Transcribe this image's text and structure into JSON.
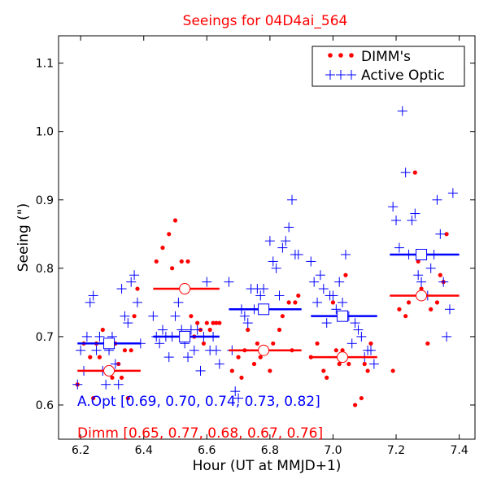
{
  "chart_data": {
    "type": "scatter",
    "title": "Seeings for 04D4ai_564",
    "xlabel": "Hour (UT at MMJD+1)",
    "ylabel": "Seeing (\")",
    "xlim": [
      6.13,
      7.45
    ],
    "ylim": [
      0.55,
      1.14
    ],
    "xticks": [
      6.2,
      6.4,
      6.6,
      6.8,
      7.0,
      7.2,
      7.4
    ],
    "xtick_labels": [
      "6.2",
      "6.4",
      "6.6",
      "6.8",
      "7.0",
      "7.2",
      "7.4"
    ],
    "yticks": [
      0.6,
      0.7,
      0.8,
      0.9,
      1.0,
      1.1
    ],
    "ytick_labels": [
      "0.6",
      "0.7",
      "0.8",
      "0.9",
      "1.0",
      "1.1"
    ],
    "legend": {
      "position": "top-right",
      "entries": [
        {
          "label": "DIMM's",
          "marker": "dots",
          "color": "#ff0000"
        },
        {
          "label": "Active Optic",
          "marker": "plus",
          "color": "#0000ff"
        }
      ]
    },
    "colors": {
      "dimm": "#ff0000",
      "aopt": "#0000ff"
    },
    "series": [
      {
        "name": "DIMM's",
        "marker": "dot",
        "color": "#ff0000",
        "points": [
          [
            6.19,
            0.63
          ],
          [
            6.21,
            0.69
          ],
          [
            6.23,
            0.67
          ],
          [
            6.24,
            0.61
          ],
          [
            6.25,
            0.69
          ],
          [
            6.26,
            0.67
          ],
          [
            6.27,
            0.71
          ],
          [
            6.28,
            0.69
          ],
          [
            6.29,
            0.65
          ],
          [
            6.3,
            0.64
          ],
          [
            6.31,
            0.69
          ],
          [
            6.32,
            0.66
          ],
          [
            6.33,
            0.64
          ],
          [
            6.34,
            0.68
          ],
          [
            6.35,
            0.61
          ],
          [
            6.36,
            0.68
          ],
          [
            6.37,
            0.73
          ],
          [
            6.38,
            0.77
          ],
          [
            6.44,
            0.81
          ],
          [
            6.46,
            0.83
          ],
          [
            6.48,
            0.85
          ],
          [
            6.49,
            0.8
          ],
          [
            6.5,
            0.87
          ],
          [
            6.52,
            0.81
          ],
          [
            6.54,
            0.81
          ],
          [
            6.55,
            0.73
          ],
          [
            6.56,
            0.7
          ],
          [
            6.57,
            0.72
          ],
          [
            6.58,
            0.71
          ],
          [
            6.59,
            0.69
          ],
          [
            6.6,
            0.72
          ],
          [
            6.61,
            0.71
          ],
          [
            6.62,
            0.72
          ],
          [
            6.63,
            0.72
          ],
          [
            6.64,
            0.72
          ],
          [
            6.68,
            0.65
          ],
          [
            6.7,
            0.67
          ],
          [
            6.71,
            0.64
          ],
          [
            6.72,
            0.68
          ],
          [
            6.73,
            0.71
          ],
          [
            6.75,
            0.66
          ],
          [
            6.76,
            0.69
          ],
          [
            6.77,
            0.67
          ],
          [
            6.78,
            0.68
          ],
          [
            6.8,
            0.65
          ],
          [
            6.81,
            0.69
          ],
          [
            6.83,
            0.71
          ],
          [
            6.84,
            0.73
          ],
          [
            6.86,
            0.75
          ],
          [
            6.87,
            0.68
          ],
          [
            6.88,
            0.75
          ],
          [
            6.89,
            0.76
          ],
          [
            6.93,
            0.67
          ],
          [
            6.95,
            0.69
          ],
          [
            6.97,
            0.65
          ],
          [
            6.98,
            0.64
          ],
          [
            7.0,
            0.75
          ],
          [
            7.01,
            0.68
          ],
          [
            7.02,
            0.66
          ],
          [
            7.03,
            0.68
          ],
          [
            7.04,
            0.79
          ],
          [
            7.05,
            0.66
          ],
          [
            7.07,
            0.6
          ],
          [
            7.09,
            0.61
          ],
          [
            7.1,
            0.66
          ],
          [
            7.11,
            0.65
          ],
          [
            7.12,
            0.69
          ],
          [
            7.19,
            0.65
          ],
          [
            7.21,
            0.74
          ],
          [
            7.23,
            0.73
          ],
          [
            7.24,
            0.75
          ],
          [
            7.26,
            0.94
          ],
          [
            7.27,
            0.81
          ],
          [
            7.28,
            0.77
          ],
          [
            7.29,
            0.76
          ],
          [
            7.3,
            0.69
          ],
          [
            7.31,
            0.74
          ],
          [
            7.33,
            0.75
          ],
          [
            7.34,
            0.79
          ],
          [
            7.35,
            0.78
          ],
          [
            7.36,
            0.85
          ]
        ]
      },
      {
        "name": "Active Optic",
        "marker": "plus",
        "color": "#0000ff",
        "points": [
          [
            6.19,
            0.63
          ],
          [
            6.2,
            0.68
          ],
          [
            6.21,
            0.65
          ],
          [
            6.22,
            0.7
          ],
          [
            6.23,
            0.75
          ],
          [
            6.24,
            0.76
          ],
          [
            6.25,
            0.68
          ],
          [
            6.26,
            0.7
          ],
          [
            6.27,
            0.65
          ],
          [
            6.28,
            0.63
          ],
          [
            6.29,
            0.68
          ],
          [
            6.3,
            0.7
          ],
          [
            6.31,
            0.66
          ],
          [
            6.32,
            0.63
          ],
          [
            6.33,
            0.77
          ],
          [
            6.34,
            0.73
          ],
          [
            6.35,
            0.72
          ],
          [
            6.36,
            0.78
          ],
          [
            6.37,
            0.79
          ],
          [
            6.38,
            0.75
          ],
          [
            6.39,
            0.69
          ],
          [
            6.43,
            0.73
          ],
          [
            6.44,
            0.7
          ],
          [
            6.45,
            0.69
          ],
          [
            6.46,
            0.71
          ],
          [
            6.47,
            0.7
          ],
          [
            6.48,
            0.67
          ],
          [
            6.49,
            0.7
          ],
          [
            6.5,
            0.73
          ],
          [
            6.51,
            0.75
          ],
          [
            6.52,
            0.71
          ],
          [
            6.53,
            0.69
          ],
          [
            6.54,
            0.67
          ],
          [
            6.55,
            0.71
          ],
          [
            6.56,
            0.68
          ],
          [
            6.57,
            0.71
          ],
          [
            6.58,
            0.65
          ],
          [
            6.59,
            0.7
          ],
          [
            6.6,
            0.78
          ],
          [
            6.61,
            0.68
          ],
          [
            6.62,
            0.7
          ],
          [
            6.63,
            0.68
          ],
          [
            6.64,
            0.66
          ],
          [
            6.67,
            0.78
          ],
          [
            6.68,
            0.68
          ],
          [
            6.69,
            0.62
          ],
          [
            6.7,
            0.61
          ],
          [
            6.71,
            0.74
          ],
          [
            6.72,
            0.73
          ],
          [
            6.73,
            0.72
          ],
          [
            6.74,
            0.77
          ],
          [
            6.75,
            0.74
          ],
          [
            6.76,
            0.77
          ],
          [
            6.77,
            0.76
          ],
          [
            6.78,
            0.77
          ],
          [
            6.79,
            0.74
          ],
          [
            6.8,
            0.84
          ],
          [
            6.81,
            0.81
          ],
          [
            6.82,
            0.8
          ],
          [
            6.83,
            0.76
          ],
          [
            6.84,
            0.83
          ],
          [
            6.85,
            0.84
          ],
          [
            6.86,
            0.86
          ],
          [
            6.87,
            0.9
          ],
          [
            6.88,
            0.82
          ],
          [
            6.89,
            0.82
          ],
          [
            6.93,
            0.81
          ],
          [
            6.94,
            0.78
          ],
          [
            6.95,
            0.75
          ],
          [
            6.96,
            0.79
          ],
          [
            6.97,
            0.77
          ],
          [
            6.98,
            0.72
          ],
          [
            6.99,
            0.76
          ],
          [
            7.0,
            0.76
          ],
          [
            7.01,
            0.74
          ],
          [
            7.02,
            0.78
          ],
          [
            7.03,
            0.75
          ],
          [
            7.04,
            0.82
          ],
          [
            7.05,
            0.73
          ],
          [
            7.06,
            0.69
          ],
          [
            7.07,
            0.72
          ],
          [
            7.08,
            0.71
          ],
          [
            7.09,
            0.7
          ],
          [
            7.1,
            0.67
          ],
          [
            7.11,
            0.68
          ],
          [
            7.12,
            0.68
          ],
          [
            7.13,
            0.66
          ],
          [
            7.19,
            0.89
          ],
          [
            7.2,
            0.87
          ],
          [
            7.21,
            0.83
          ],
          [
            7.22,
            1.03
          ],
          [
            7.23,
            0.94
          ],
          [
            7.24,
            0.82
          ],
          [
            7.25,
            0.87
          ],
          [
            7.26,
            0.88
          ],
          [
            7.27,
            0.79
          ],
          [
            7.28,
            0.78
          ],
          [
            7.29,
            0.82
          ],
          [
            7.3,
            0.76
          ],
          [
            7.31,
            0.8
          ],
          [
            7.32,
            0.82
          ],
          [
            7.33,
            0.9
          ],
          [
            7.34,
            0.85
          ],
          [
            7.35,
            0.78
          ],
          [
            7.36,
            0.7
          ],
          [
            7.37,
            0.74
          ],
          [
            7.38,
            0.91
          ]
        ]
      }
    ],
    "bin_means": {
      "aopt": [
        {
          "xmin": 6.19,
          "xmax": 6.39,
          "value": 0.69,
          "marker_x": 6.29
        },
        {
          "xmin": 6.43,
          "xmax": 6.64,
          "value": 0.7,
          "marker_x": 6.53
        },
        {
          "xmin": 6.67,
          "xmax": 6.9,
          "value": 0.74,
          "marker_x": 6.78
        },
        {
          "xmin": 6.93,
          "xmax": 7.14,
          "value": 0.73,
          "marker_x": 7.03
        },
        {
          "xmin": 7.18,
          "xmax": 7.4,
          "value": 0.82,
          "marker_x": 7.28
        }
      ],
      "dimm": [
        {
          "xmin": 6.19,
          "xmax": 6.39,
          "value": 0.65,
          "marker_x": 6.29
        },
        {
          "xmin": 6.43,
          "xmax": 6.64,
          "value": 0.77,
          "marker_x": 6.53
        },
        {
          "xmin": 6.67,
          "xmax": 6.9,
          "value": 0.68,
          "marker_x": 6.78
        },
        {
          "xmin": 6.93,
          "xmax": 7.14,
          "value": 0.67,
          "marker_x": 7.03
        },
        {
          "xmin": 7.18,
          "xmax": 7.4,
          "value": 0.76,
          "marker_x": 7.28
        }
      ]
    },
    "annotations": {
      "aopt_summary": "A.Opt [0.69, 0.70, 0.74, 0.73, 0.82]",
      "dimm_summary": "Dimm [0.65, 0.77, 0.68, 0.67, 0.76]"
    },
    "grid": false
  }
}
